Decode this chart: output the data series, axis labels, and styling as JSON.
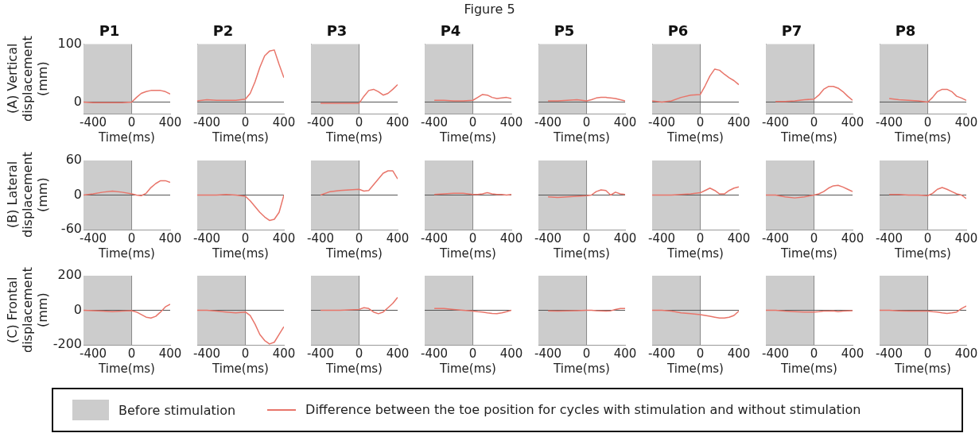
{
  "chart_data": [
    {
      "type": "line",
      "title": "P1",
      "ylabel": "(A) Vertical displacement (mm)",
      "xlabel": "Time(ms)",
      "annotations": [
        "Figure 5"
      ],
      "legend": "bottom",
      "x": [
        -500,
        -400,
        -300,
        -200,
        -100,
        0,
        50,
        100,
        150,
        200,
        250,
        300,
        350,
        400
      ],
      "series": [
        {
          "name": "Difference between the toe position for cycles with stimulation and without stimulation",
          "color": "#e8756a",
          "values": [
            0,
            -1,
            -1,
            -1,
            -1,
            0,
            8,
            15,
            18,
            20,
            20,
            20,
            18,
            14
          ]
        }
      ],
      "xlim": [
        -500,
        400
      ],
      "ylim": [
        -20,
        100
      ],
      "xticks": [
        -400,
        0,
        400
      ],
      "yticks": [
        0,
        100
      ],
      "bands": [
        {
          "axis": "x",
          "from": -500,
          "to": 0,
          "label": "Before stimulation",
          "color": "#cccccc"
        }
      ],
      "ref_lines": [
        {
          "axis": "y",
          "value": 0,
          "color": "#555555"
        }
      ]
    },
    {
      "type": "line",
      "title": "P2",
      "xlabel": "Time(ms)",
      "tick_labels": "x",
      "x": [
        -500,
        -400,
        -300,
        -200,
        -100,
        0,
        50,
        100,
        150,
        200,
        250,
        300,
        350,
        400
      ],
      "series": [
        {
          "color": "#e8756a",
          "values": [
            2,
            4,
            3,
            3,
            3,
            5,
            15,
            35,
            60,
            80,
            88,
            90,
            65,
            42
          ]
        }
      ],
      "xlim": [
        -500,
        400
      ],
      "ylim": [
        -20,
        100
      ],
      "xticks": [
        -400,
        0,
        400
      ],
      "yticks": [
        0,
        100
      ],
      "bands": [
        {
          "axis": "x",
          "from": -500,
          "to": 0,
          "color": "#cccccc"
        }
      ],
      "ref_lines": [
        {
          "axis": "y",
          "value": 0,
          "color": "#555555"
        }
      ]
    },
    {
      "type": "line",
      "title": "P3",
      "xlabel": "Time(ms)",
      "tick_labels": "x",
      "x": [
        -400,
        -300,
        -200,
        -100,
        0,
        50,
        100,
        150,
        200,
        250,
        300,
        350,
        400
      ],
      "series": [
        {
          "color": "#e8756a",
          "values": [
            -2,
            -2,
            -2,
            -2,
            -2,
            10,
            20,
            22,
            18,
            12,
            15,
            22,
            30
          ]
        }
      ],
      "xlim": [
        -500,
        400
      ],
      "ylim": [
        -20,
        100
      ],
      "xticks": [
        -400,
        0,
        400
      ],
      "yticks": [
        0,
        100
      ],
      "bands": [
        {
          "axis": "x",
          "from": -500,
          "to": 0,
          "color": "#cccccc"
        }
      ],
      "ref_lines": [
        {
          "axis": "y",
          "value": 0,
          "color": "#555555"
        }
      ]
    },
    {
      "type": "line",
      "title": "P4",
      "xlabel": "Time(ms)",
      "tick_labels": "x",
      "x": [
        -400,
        -300,
        -200,
        -100,
        0,
        50,
        100,
        150,
        200,
        250,
        300,
        350,
        400
      ],
      "series": [
        {
          "color": "#e8756a",
          "values": [
            3,
            3,
            2,
            2,
            3,
            8,
            13,
            12,
            8,
            6,
            7,
            8,
            6
          ]
        }
      ],
      "xlim": [
        -500,
        400
      ],
      "ylim": [
        -20,
        100
      ],
      "xticks": [
        -400,
        0,
        400
      ],
      "yticks": [
        0,
        100
      ],
      "bands": [
        {
          "axis": "x",
          "from": -500,
          "to": 0,
          "color": "#cccccc"
        }
      ],
      "ref_lines": [
        {
          "axis": "y",
          "value": 0,
          "color": "#555555"
        }
      ]
    },
    {
      "type": "line",
      "title": "P5",
      "xlabel": "Time(ms)",
      "tick_labels": "x",
      "x": [
        -400,
        -300,
        -200,
        -100,
        0,
        50,
        100,
        150,
        200,
        250,
        300,
        350,
        400
      ],
      "series": [
        {
          "color": "#e8756a",
          "values": [
            2,
            2,
            3,
            4,
            2,
            4,
            7,
            8,
            8,
            7,
            6,
            4,
            2
          ]
        }
      ],
      "xlim": [
        -500,
        400
      ],
      "ylim": [
        -20,
        100
      ],
      "xticks": [
        -400,
        0,
        400
      ],
      "yticks": [
        0,
        100
      ],
      "bands": [
        {
          "axis": "x",
          "from": -500,
          "to": 0,
          "color": "#cccccc"
        }
      ],
      "ref_lines": [
        {
          "axis": "y",
          "value": 0,
          "color": "#555555"
        }
      ]
    },
    {
      "type": "line",
      "title": "P6",
      "xlabel": "Time(ms)",
      "tick_labels": "x",
      "x": [
        -500,
        -400,
        -300,
        -200,
        -100,
        0,
        50,
        100,
        150,
        200,
        250,
        300,
        350,
        400
      ],
      "series": [
        {
          "color": "#e8756a",
          "values": [
            2,
            0,
            2,
            8,
            12,
            13,
            28,
            45,
            57,
            55,
            48,
            42,
            37,
            30
          ]
        }
      ],
      "xlim": [
        -500,
        400
      ],
      "ylim": [
        -20,
        100
      ],
      "xticks": [
        -400,
        0,
        400
      ],
      "yticks": [
        0,
        100
      ],
      "bands": [
        {
          "axis": "x",
          "from": -500,
          "to": 0,
          "color": "#cccccc"
        }
      ],
      "ref_lines": [
        {
          "axis": "y",
          "value": 0,
          "color": "#555555"
        }
      ]
    },
    {
      "type": "line",
      "title": "P7",
      "xlabel": "Time(ms)",
      "tick_labels": "x",
      "x": [
        -400,
        -300,
        -200,
        -100,
        0,
        50,
        100,
        150,
        200,
        250,
        300,
        350,
        400
      ],
      "series": [
        {
          "color": "#e8756a",
          "values": [
            1,
            1,
            2,
            4,
            5,
            12,
            22,
            27,
            27,
            24,
            18,
            10,
            3
          ]
        }
      ],
      "xlim": [
        -500,
        400
      ],
      "ylim": [
        -20,
        100
      ],
      "xticks": [
        -400,
        0,
        400
      ],
      "yticks": [
        0,
        100
      ],
      "bands": [
        {
          "axis": "x",
          "from": -500,
          "to": 0,
          "color": "#cccccc"
        }
      ],
      "ref_lines": [
        {
          "axis": "y",
          "value": 0,
          "color": "#555555"
        }
      ]
    },
    {
      "type": "line",
      "title": "P8",
      "xlabel": "Time(ms)",
      "tick_labels": "x",
      "x": [
        -400,
        -300,
        -200,
        -100,
        0,
        50,
        100,
        150,
        200,
        250,
        300,
        350,
        400
      ],
      "series": [
        {
          "color": "#e8756a",
          "values": [
            6,
            4,
            3,
            2,
            0,
            8,
            18,
            22,
            22,
            18,
            10,
            7,
            3
          ]
        }
      ],
      "xlim": [
        -500,
        400
      ],
      "ylim": [
        -20,
        100
      ],
      "xticks": [
        -400,
        0,
        400
      ],
      "yticks": [
        0,
        100
      ],
      "bands": [
        {
          "axis": "x",
          "from": -500,
          "to": 0,
          "color": "#cccccc"
        }
      ],
      "ref_lines": [
        {
          "axis": "y",
          "value": 0,
          "color": "#555555"
        }
      ]
    },
    {
      "type": "line",
      "ylabel": "(B) Lateral displacement (mm)",
      "xlabel": "Time(ms)",
      "x": [
        -500,
        -400,
        -300,
        -200,
        -100,
        0,
        50,
        100,
        150,
        200,
        250,
        300,
        350,
        400
      ],
      "series": [
        {
          "color": "#e8756a",
          "values": [
            0,
            2,
            5,
            7,
            5,
            2,
            0,
            -1,
            3,
            13,
            20,
            25,
            25,
            22
          ]
        }
      ],
      "xlim": [
        -500,
        400
      ],
      "ylim": [
        -60,
        60
      ],
      "xticks": [
        -400,
        0,
        400
      ],
      "yticks": [
        -60,
        0,
        60
      ],
      "bands": [
        {
          "axis": "x",
          "from": -500,
          "to": 0,
          "color": "#cccccc"
        }
      ],
      "ref_lines": [
        {
          "axis": "y",
          "value": 0,
          "color": "#555555"
        }
      ]
    },
    {
      "type": "line",
      "xlabel": "Time(ms)",
      "tick_labels": "x",
      "x": [
        -500,
        -400,
        -300,
        -200,
        -100,
        0,
        50,
        100,
        150,
        200,
        250,
        300,
        350,
        400
      ],
      "series": [
        {
          "color": "#e8756a",
          "values": [
            0,
            0,
            0,
            1,
            0,
            -2,
            -10,
            -20,
            -30,
            -38,
            -44,
            -42,
            -30,
            0
          ]
        }
      ],
      "xlim": [
        -500,
        400
      ],
      "ylim": [
        -60,
        60
      ],
      "xticks": [
        -400,
        0,
        400
      ],
      "yticks": [
        -60,
        0,
        60
      ],
      "bands": [
        {
          "axis": "x",
          "from": -500,
          "to": 0,
          "color": "#cccccc"
        }
      ],
      "ref_lines": [
        {
          "axis": "y",
          "value": 0,
          "color": "#555555"
        }
      ]
    },
    {
      "type": "line",
      "xlabel": "Time(ms)",
      "tick_labels": "x",
      "x": [
        -400,
        -300,
        -200,
        -100,
        0,
        50,
        100,
        150,
        200,
        250,
        300,
        350,
        400
      ],
      "series": [
        {
          "color": "#e8756a",
          "values": [
            0,
            6,
            8,
            9,
            10,
            7,
            8,
            18,
            28,
            38,
            42,
            42,
            28
          ]
        }
      ],
      "xlim": [
        -500,
        400
      ],
      "ylim": [
        -60,
        60
      ],
      "xticks": [
        -400,
        0,
        400
      ],
      "yticks": [
        -60,
        0,
        60
      ],
      "bands": [
        {
          "axis": "x",
          "from": -500,
          "to": 0,
          "color": "#cccccc"
        }
      ],
      "ref_lines": [
        {
          "axis": "y",
          "value": 0,
          "color": "#555555"
        }
      ]
    },
    {
      "type": "line",
      "xlabel": "Time(ms)",
      "tick_labels": "x",
      "x": [
        -400,
        -300,
        -200,
        -100,
        0,
        50,
        100,
        150,
        200,
        250,
        300,
        350,
        400
      ],
      "series": [
        {
          "color": "#e8756a",
          "values": [
            1,
            2,
            3,
            3,
            1,
            1,
            2,
            4,
            2,
            1,
            1,
            0,
            1
          ]
        }
      ],
      "xlim": [
        -500,
        400
      ],
      "ylim": [
        -60,
        60
      ],
      "xticks": [
        -400,
        0,
        400
      ],
      "yticks": [
        -60,
        0,
        60
      ],
      "bands": [
        {
          "axis": "x",
          "from": -500,
          "to": 0,
          "color": "#cccccc"
        }
      ],
      "ref_lines": [
        {
          "axis": "y",
          "value": 0,
          "color": "#555555"
        }
      ]
    },
    {
      "type": "line",
      "xlabel": "Time(ms)",
      "tick_labels": "x",
      "x": [
        -400,
        -300,
        -200,
        -100,
        0,
        50,
        100,
        150,
        200,
        250,
        300,
        350,
        400
      ],
      "series": [
        {
          "color": "#e8756a",
          "values": [
            -3,
            -4,
            -3,
            -2,
            -1,
            0,
            6,
            9,
            8,
            0,
            5,
            2,
            1
          ]
        }
      ],
      "xlim": [
        -500,
        400
      ],
      "ylim": [
        -60,
        60
      ],
      "xticks": [
        -400,
        0,
        400
      ],
      "yticks": [
        -60,
        0,
        60
      ],
      "bands": [
        {
          "axis": "x",
          "from": -500,
          "to": 0,
          "color": "#cccccc"
        }
      ],
      "ref_lines": [
        {
          "axis": "y",
          "value": 0,
          "color": "#555555"
        }
      ]
    },
    {
      "type": "line",
      "xlabel": "Time(ms)",
      "tick_labels": "x",
      "x": [
        -500,
        -400,
        -300,
        -200,
        -100,
        0,
        50,
        100,
        150,
        200,
        250,
        300,
        350,
        400
      ],
      "series": [
        {
          "color": "#e8756a",
          "values": [
            0,
            0,
            0,
            1,
            2,
            4,
            8,
            12,
            8,
            2,
            2,
            8,
            12,
            14
          ]
        }
      ],
      "xlim": [
        -500,
        400
      ],
      "ylim": [
        -60,
        60
      ],
      "xticks": [
        -400,
        0,
        400
      ],
      "yticks": [
        -60,
        0,
        60
      ],
      "bands": [
        {
          "axis": "x",
          "from": -500,
          "to": 0,
          "color": "#cccccc"
        }
      ],
      "ref_lines": [
        {
          "axis": "y",
          "value": 0,
          "color": "#555555"
        }
      ]
    },
    {
      "type": "line",
      "xlabel": "Time(ms)",
      "tick_labels": "x",
      "x": [
        -500,
        -400,
        -300,
        -200,
        -100,
        0,
        50,
        100,
        150,
        200,
        250,
        300,
        350,
        400
      ],
      "series": [
        {
          "color": "#e8756a",
          "values": [
            0,
            0,
            -3,
            -5,
            -3,
            0,
            2,
            6,
            12,
            16,
            17,
            14,
            10,
            6
          ]
        }
      ],
      "xlim": [
        -500,
        400
      ],
      "ylim": [
        -60,
        60
      ],
      "xticks": [
        -400,
        0,
        400
      ],
      "yticks": [
        -60,
        0,
        60
      ],
      "bands": [
        {
          "axis": "x",
          "from": -500,
          "to": 0,
          "color": "#cccccc"
        }
      ],
      "ref_lines": [
        {
          "axis": "y",
          "value": 0,
          "color": "#555555"
        }
      ]
    },
    {
      "type": "line",
      "xlabel": "Time(ms)",
      "tick_labels": "x",
      "x": [
        -400,
        -300,
        -200,
        -100,
        0,
        50,
        100,
        150,
        200,
        250,
        300,
        350,
        400
      ],
      "series": [
        {
          "color": "#e8756a",
          "values": [
            1,
            1,
            0,
            0,
            -1,
            3,
            10,
            13,
            10,
            6,
            2,
            0,
            -6
          ]
        }
      ],
      "xlim": [
        -500,
        400
      ],
      "ylim": [
        -60,
        60
      ],
      "xticks": [
        -400,
        0,
        400
      ],
      "yticks": [
        -60,
        0,
        60
      ],
      "bands": [
        {
          "axis": "x",
          "from": -500,
          "to": 0,
          "color": "#cccccc"
        }
      ],
      "ref_lines": [
        {
          "axis": "y",
          "value": 0,
          "color": "#555555"
        }
      ]
    },
    {
      "type": "line",
      "ylabel": "(C) Frontal displacement (mm)",
      "xlabel": "Time(ms)",
      "x": [
        -500,
        -400,
        -300,
        -200,
        -100,
        0,
        50,
        100,
        150,
        200,
        250,
        300,
        350,
        400
      ],
      "series": [
        {
          "color": "#e8756a",
          "values": [
            0,
            -2,
            -5,
            -8,
            -5,
            -2,
            -10,
            -25,
            -40,
            -45,
            -35,
            -10,
            20,
            35
          ]
        }
      ],
      "xlim": [
        -500,
        400
      ],
      "ylim": [
        -200,
        200
      ],
      "xticks": [
        -400,
        0,
        400
      ],
      "yticks": [
        -200,
        0,
        200
      ],
      "bands": [
        {
          "axis": "x",
          "from": -500,
          "to": 0,
          "color": "#cccccc"
        }
      ],
      "ref_lines": [
        {
          "axis": "y",
          "value": 0,
          "color": "#555555"
        }
      ]
    },
    {
      "type": "line",
      "xlabel": "Time(ms)",
      "tick_labels": "x",
      "x": [
        -500,
        -400,
        -300,
        -200,
        -100,
        0,
        50,
        100,
        150,
        200,
        250,
        300,
        350,
        400
      ],
      "series": [
        {
          "color": "#e8756a",
          "values": [
            0,
            0,
            -5,
            -10,
            -15,
            -10,
            -30,
            -80,
            -140,
            -175,
            -195,
            -185,
            -140,
            -95
          ]
        }
      ],
      "xlim": [
        -500,
        400
      ],
      "ylim": [
        -200,
        200
      ],
      "xticks": [
        -400,
        0,
        400
      ],
      "yticks": [
        -200,
        0,
        200
      ],
      "bands": [
        {
          "axis": "x",
          "from": -500,
          "to": 0,
          "color": "#cccccc"
        }
      ],
      "ref_lines": [
        {
          "axis": "y",
          "value": 0,
          "color": "#555555"
        }
      ]
    },
    {
      "type": "line",
      "xlabel": "Time(ms)",
      "tick_labels": "x",
      "x": [
        -400,
        -300,
        -200,
        -100,
        0,
        50,
        100,
        150,
        200,
        250,
        300,
        350,
        400
      ],
      "series": [
        {
          "color": "#e8756a",
          "values": [
            0,
            0,
            0,
            2,
            5,
            15,
            10,
            -10,
            -20,
            -10,
            15,
            40,
            75
          ]
        }
      ],
      "xlim": [
        -500,
        400
      ],
      "ylim": [
        -200,
        200
      ],
      "xticks": [
        -400,
        0,
        400
      ],
      "yticks": [
        -200,
        0,
        200
      ],
      "bands": [
        {
          "axis": "x",
          "from": -500,
          "to": 0,
          "color": "#cccccc"
        }
      ],
      "ref_lines": [
        {
          "axis": "y",
          "value": 0,
          "color": "#555555"
        }
      ]
    },
    {
      "type": "line",
      "xlabel": "Time(ms)",
      "tick_labels": "x",
      "x": [
        -400,
        -300,
        -200,
        -100,
        0,
        50,
        100,
        150,
        200,
        250,
        300,
        350,
        400
      ],
      "series": [
        {
          "color": "#e8756a",
          "values": [
            10,
            10,
            5,
            0,
            -5,
            -8,
            -10,
            -15,
            -18,
            -20,
            -15,
            -8,
            0
          ]
        }
      ],
      "xlim": [
        -500,
        400
      ],
      "ylim": [
        -200,
        200
      ],
      "xticks": [
        -400,
        0,
        400
      ],
      "yticks": [
        -200,
        0,
        200
      ],
      "bands": [
        {
          "axis": "x",
          "from": -500,
          "to": 0,
          "color": "#cccccc"
        }
      ],
      "ref_lines": [
        {
          "axis": "y",
          "value": 0,
          "color": "#555555"
        }
      ]
    },
    {
      "type": "line",
      "xlabel": "Time(ms)",
      "tick_labels": "x",
      "x": [
        -400,
        -300,
        -200,
        -100,
        0,
        50,
        100,
        150,
        200,
        250,
        300,
        350,
        400
      ],
      "series": [
        {
          "color": "#e8756a",
          "values": [
            -3,
            -5,
            -3,
            -2,
            0,
            0,
            -2,
            -3,
            -5,
            -3,
            5,
            10,
            10
          ]
        }
      ],
      "xlim": [
        -500,
        400
      ],
      "ylim": [
        -200,
        200
      ],
      "xticks": [
        -400,
        0,
        400
      ],
      "yticks": [
        -200,
        0,
        200
      ],
      "bands": [
        {
          "axis": "x",
          "from": -500,
          "to": 0,
          "color": "#cccccc"
        }
      ],
      "ref_lines": [
        {
          "axis": "y",
          "value": 0,
          "color": "#555555"
        }
      ]
    },
    {
      "type": "line",
      "xlabel": "Time(ms)",
      "tick_labels": "x",
      "x": [
        -500,
        -400,
        -300,
        -200,
        -100,
        0,
        50,
        100,
        150,
        200,
        250,
        300,
        350,
        400
      ],
      "series": [
        {
          "color": "#e8756a",
          "values": [
            0,
            0,
            -5,
            -15,
            -20,
            -25,
            -30,
            -35,
            -40,
            -45,
            -45,
            -40,
            -30,
            -5
          ]
        }
      ],
      "xlim": [
        -500,
        400
      ],
      "ylim": [
        -200,
        200
      ],
      "xticks": [
        -400,
        0,
        400
      ],
      "yticks": [
        -200,
        0,
        200
      ],
      "bands": [
        {
          "axis": "x",
          "from": -500,
          "to": 0,
          "color": "#cccccc"
        }
      ],
      "ref_lines": [
        {
          "axis": "y",
          "value": 0,
          "color": "#555555"
        }
      ]
    },
    {
      "type": "line",
      "xlabel": "Time(ms)",
      "tick_labels": "x",
      "x": [
        -500,
        -400,
        -300,
        -200,
        -100,
        0,
        50,
        100,
        150,
        200,
        250,
        300,
        350,
        400
      ],
      "series": [
        {
          "color": "#e8756a",
          "values": [
            0,
            0,
            -5,
            -8,
            -10,
            -10,
            -8,
            -5,
            -5,
            -3,
            -8,
            -5,
            -3,
            -2
          ]
        }
      ],
      "xlim": [
        -500,
        400
      ],
      "ylim": [
        -200,
        200
      ],
      "xticks": [
        -400,
        0,
        400
      ],
      "yticks": [
        -200,
        0,
        200
      ],
      "bands": [
        {
          "axis": "x",
          "from": -500,
          "to": 0,
          "color": "#cccccc"
        }
      ],
      "ref_lines": [
        {
          "axis": "y",
          "value": 0,
          "color": "#555555"
        }
      ]
    },
    {
      "type": "line",
      "xlabel": "Time(ms)",
      "tick_labels": "x",
      "x": [
        -500,
        -400,
        -300,
        -200,
        -100,
        0,
        50,
        100,
        150,
        200,
        250,
        300,
        350,
        400
      ],
      "series": [
        {
          "color": "#e8756a",
          "values": [
            0,
            0,
            -3,
            -5,
            -5,
            -5,
            -8,
            -10,
            -15,
            -18,
            -15,
            -10,
            10,
            25
          ]
        }
      ],
      "xlim": [
        -500,
        400
      ],
      "ylim": [
        -200,
        200
      ],
      "xticks": [
        -400,
        0,
        400
      ],
      "yticks": [
        -200,
        0,
        200
      ],
      "bands": [
        {
          "axis": "x",
          "from": -500,
          "to": 0,
          "color": "#cccccc"
        }
      ],
      "ref_lines": [
        {
          "axis": "y",
          "value": 0,
          "color": "#555555"
        }
      ]
    }
  ]
}
